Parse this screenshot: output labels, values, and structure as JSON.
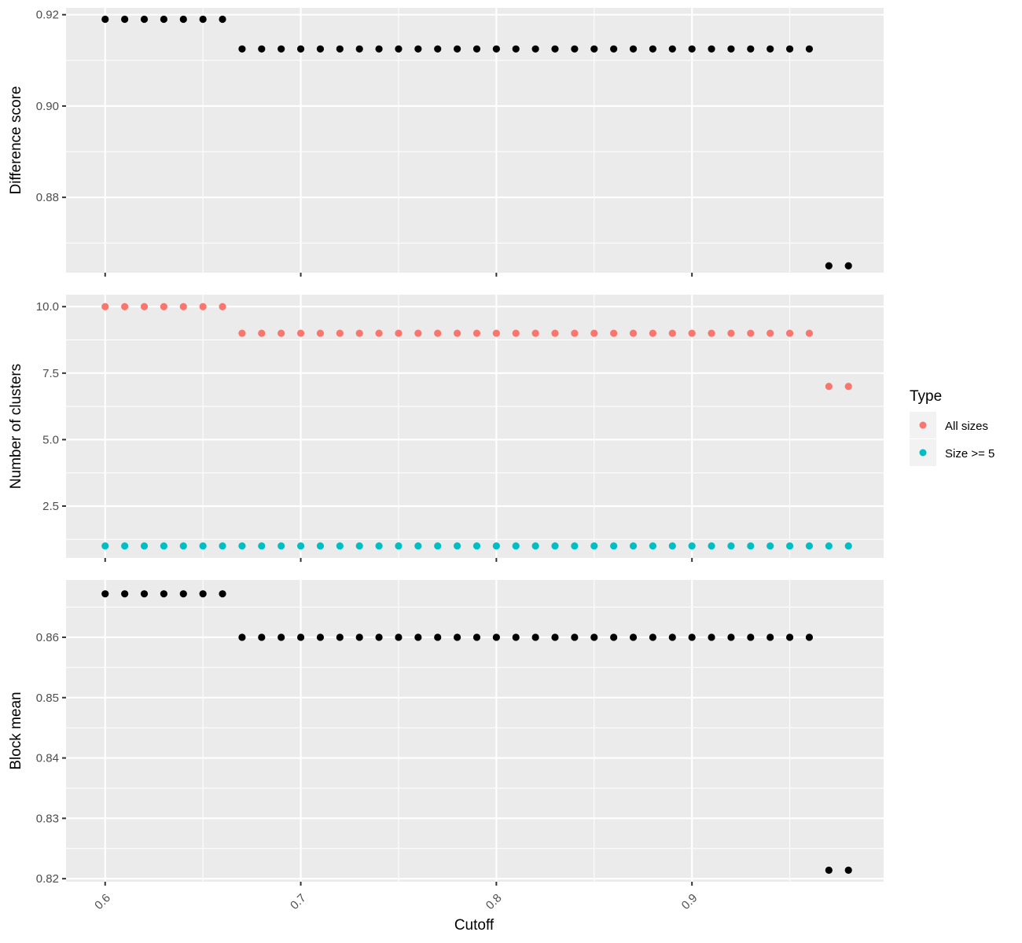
{
  "chart_data": {
    "type": "scatter",
    "layout": "three vertically stacked panels sharing the x axis",
    "grid": true,
    "xlabel": "Cutoff",
    "x_ticks": [
      "0.6",
      "0.7",
      "0.8",
      "0.9"
    ],
    "xlim": [
      0.58,
      0.998
    ],
    "legend": {
      "title": "Type",
      "placement": "right",
      "entries": [
        {
          "label": "All sizes",
          "color": "#f8766d"
        },
        {
          "label": "Size >= 5",
          "color": "#00bfc4"
        }
      ]
    },
    "x": [
      0.6,
      0.61,
      0.62,
      0.63,
      0.64,
      0.65,
      0.66,
      0.67,
      0.68,
      0.69,
      0.7,
      0.71,
      0.72,
      0.73,
      0.74,
      0.75,
      0.76,
      0.77,
      0.78,
      0.79,
      0.8,
      0.81,
      0.82,
      0.83,
      0.84,
      0.85,
      0.86,
      0.87,
      0.88,
      0.89,
      0.9,
      0.91,
      0.92,
      0.93,
      0.94,
      0.95,
      0.96,
      0.97,
      0.98
    ],
    "panels": [
      {
        "ylabel": "Difference score",
        "y_ticks": [
          "0.88",
          "0.90",
          "0.92"
        ],
        "ylim": [
          0.8635,
          0.9215
        ],
        "series": [
          {
            "color": "#000000",
            "values": [
              0.919,
              0.919,
              0.919,
              0.919,
              0.919,
              0.919,
              0.919,
              0.9125,
              0.9125,
              0.9125,
              0.9125,
              0.9125,
              0.9125,
              0.9125,
              0.9125,
              0.9125,
              0.9125,
              0.9125,
              0.9125,
              0.9125,
              0.9125,
              0.9125,
              0.9125,
              0.9125,
              0.9125,
              0.9125,
              0.9125,
              0.9125,
              0.9125,
              0.9125,
              0.9125,
              0.9125,
              0.9125,
              0.9125,
              0.9125,
              0.9125,
              0.9125,
              0.865,
              0.865
            ]
          }
        ]
      },
      {
        "ylabel": "Number of clusters",
        "y_ticks": [
          "2.5",
          "5.0",
          "7.5",
          "10.0"
        ],
        "ylim": [
          0.55,
          10.45
        ],
        "series": [
          {
            "name": "All sizes",
            "color": "#f8766d",
            "values": [
              10,
              10,
              10,
              10,
              10,
              10,
              10,
              9,
              9,
              9,
              9,
              9,
              9,
              9,
              9,
              9,
              9,
              9,
              9,
              9,
              9,
              9,
              9,
              9,
              9,
              9,
              9,
              9,
              9,
              9,
              9,
              9,
              9,
              9,
              9,
              9,
              9,
              7,
              7
            ]
          },
          {
            "name": "Size >= 5",
            "color": "#00bfc4",
            "values": [
              1,
              1,
              1,
              1,
              1,
              1,
              1,
              1,
              1,
              1,
              1,
              1,
              1,
              1,
              1,
              1,
              1,
              1,
              1,
              1,
              1,
              1,
              1,
              1,
              1,
              1,
              1,
              1,
              1,
              1,
              1,
              1,
              1,
              1,
              1,
              1,
              1,
              1,
              1
            ]
          }
        ]
      },
      {
        "ylabel": "Block mean",
        "y_ticks": [
          "0.82",
          "0.83",
          "0.84",
          "0.85",
          "0.86"
        ],
        "ylim": [
          0.8195,
          0.8695
        ],
        "series": [
          {
            "color": "#000000",
            "values": [
              0.8672,
              0.8672,
              0.8672,
              0.8672,
              0.8672,
              0.8672,
              0.8672,
              0.86,
              0.86,
              0.86,
              0.86,
              0.86,
              0.86,
              0.86,
              0.86,
              0.86,
              0.86,
              0.86,
              0.86,
              0.86,
              0.86,
              0.86,
              0.86,
              0.86,
              0.86,
              0.86,
              0.86,
              0.86,
              0.86,
              0.86,
              0.86,
              0.86,
              0.86,
              0.86,
              0.86,
              0.86,
              0.86,
              0.8214,
              0.8214
            ]
          }
        ]
      }
    ]
  }
}
